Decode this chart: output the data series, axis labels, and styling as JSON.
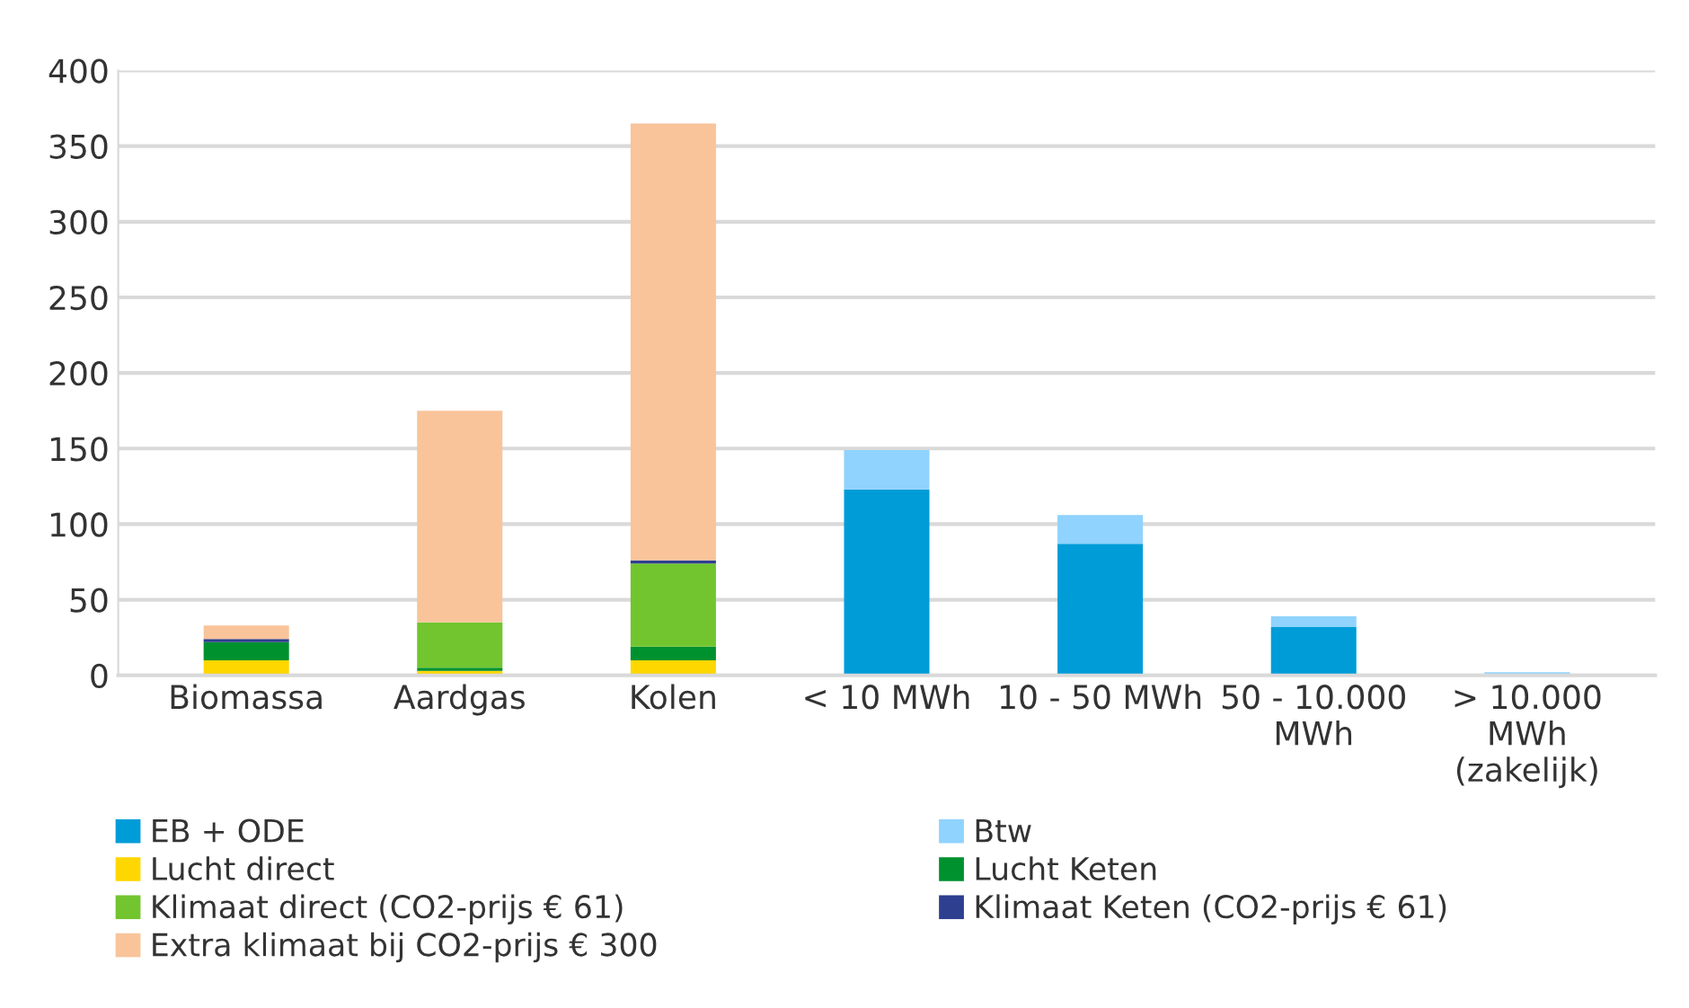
{
  "chart_data": {
    "type": "bar",
    "stacked": true,
    "categories": [
      "Biomassa",
      "Aardgas",
      "Kolen",
      "< 10 MWh",
      "10 - 50 MWh",
      "50 - 10.000\nMWh",
      "> 10.000\nMWh\n(zakelijk)"
    ],
    "series": [
      {
        "name": "EB + ODE",
        "color": "#009cd8",
        "values": [
          null,
          null,
          null,
          123,
          87,
          32,
          null
        ]
      },
      {
        "name": "Btw",
        "color": "#8fd3fe",
        "values": [
          null,
          null,
          null,
          26,
          19,
          7,
          2
        ]
      },
      {
        "name": "Lucht direct",
        "color": "#ffd700",
        "values": [
          10,
          3,
          10,
          null,
          null,
          null,
          null
        ]
      },
      {
        "name": "Lucht Keten",
        "color": "#00912f",
        "values": [
          12,
          2,
          9,
          null,
          null,
          null,
          null
        ]
      },
      {
        "name": "Klimaat direct (CO2-prijs € 61)",
        "color": "#72c52f",
        "values": [
          0,
          30,
          55,
          null,
          null,
          null,
          null
        ]
      },
      {
        "name": "Klimaat Keten (CO2-prijs € 61)",
        "color": "#2e3f8f",
        "values": [
          2,
          0,
          2,
          null,
          null,
          null,
          null
        ]
      },
      {
        "name": "Extra klimaat bij CO2-prijs € 300",
        "color": "#f9c49a",
        "values": [
          9,
          140,
          289,
          null,
          null,
          null,
          null
        ]
      }
    ],
    "ylim": [
      0,
      400
    ],
    "yticks": [
      0,
      50,
      100,
      150,
      200,
      250,
      300,
      350,
      400
    ],
    "grid": "y",
    "legend": "bottom"
  }
}
